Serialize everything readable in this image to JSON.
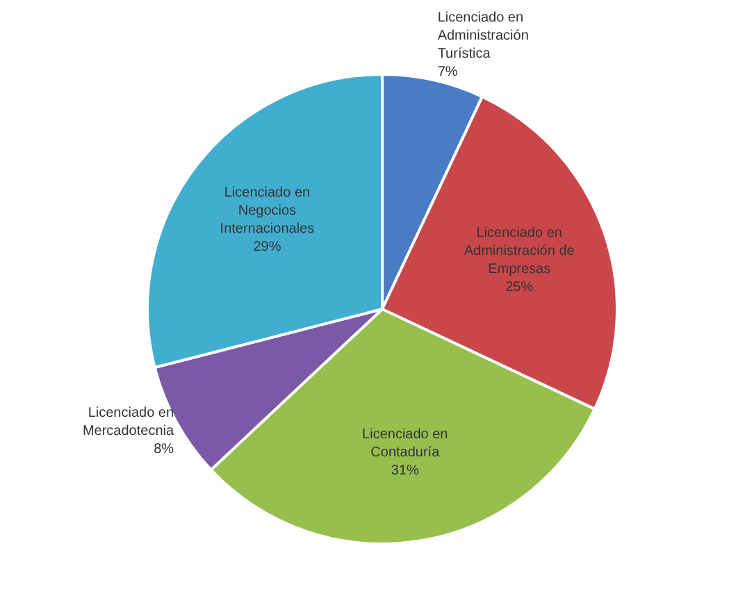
{
  "chart_data": {
    "type": "pie",
    "categories": [
      "Licenciado en Administración Turística",
      "Licenciado en Administración de Empresas",
      "Licenciado en Contaduría",
      "Licenciado en Mercadotecnia",
      "Licenciado en Negocios Internacionales"
    ],
    "values": [
      7,
      25,
      31,
      8,
      29
    ],
    "value_labels": [
      "7%",
      "25%",
      "31%",
      "8%",
      "29%"
    ],
    "colors": [
      "#4a7cc6",
      "#c9474a",
      "#97bf4e",
      "#7a5aa6",
      "#41aed0"
    ],
    "legend": false
  }
}
